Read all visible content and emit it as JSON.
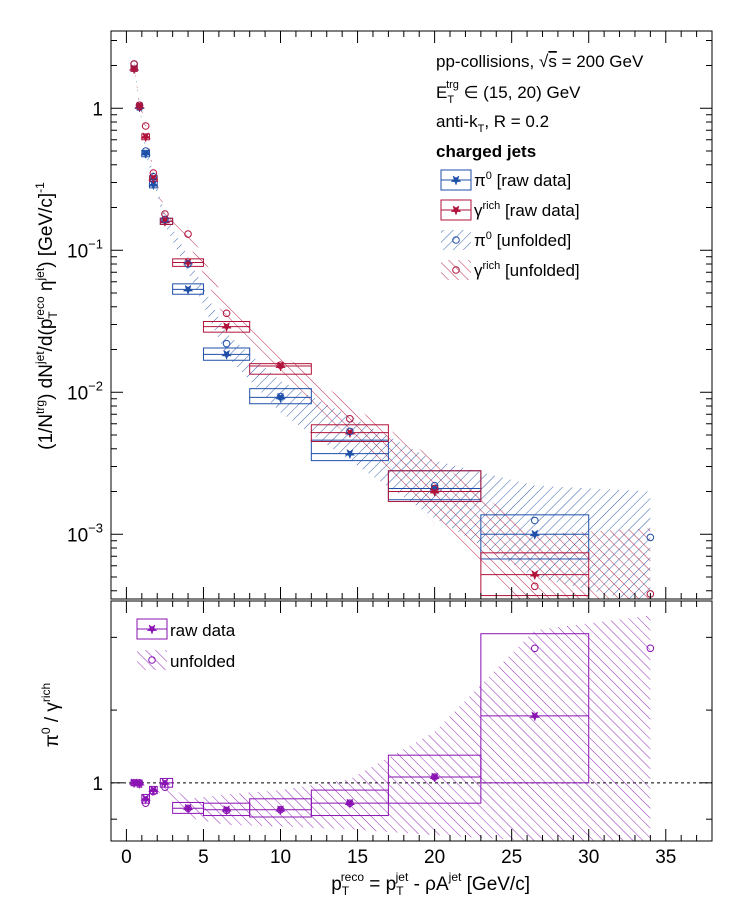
{
  "chart_data": [
    {
      "type": "scatter",
      "panel": "top",
      "yscale": "log",
      "ylim": [
        0.00035,
        3.5
      ],
      "xlim": [
        -1,
        38
      ],
      "y_ticks": [
        {
          "v": 1,
          "base": "1",
          "exp": ""
        },
        {
          "v": 0.1,
          "base": "10",
          "exp": "−1"
        },
        {
          "v": 0.01,
          "base": "10",
          "exp": "−2"
        },
        {
          "v": 0.001,
          "base": "10",
          "exp": "−3"
        }
      ],
      "ylabel": {
        "parts": [
          "(1/N",
          "trg",
          ") dN",
          "jet",
          "/d(p",
          "T",
          "reco",
          " η",
          "jet",
          ") [GeV/c]",
          "-1"
        ]
      },
      "annotations": {
        "line1_pre": "pp-collisions, ",
        "line1_sqrt": "s",
        "line1_post": " = 200 GeV",
        "line2_E": "E",
        "line2_sub": "T",
        "line2_sup": "trg",
        "line2_post": " ∈ (15, 20) GeV",
        "line3_pre": "anti-k",
        "line3_sub": "T",
        "line3_post": ", R = 0.2",
        "line4": "charged jets"
      },
      "legend": [
        {
          "sym": "π",
          "sup": "0",
          "text": " [raw data]",
          "color": "#1f4fa8",
          "kind": "raw"
        },
        {
          "sym": "γ",
          "sup": "rich",
          "text": " [raw data]",
          "color": "#b0123a",
          "kind": "raw"
        },
        {
          "sym": "π",
          "sup": "0",
          "text": " [unfolded]",
          "color": "#1f4fa8",
          "kind": "unf"
        },
        {
          "sym": "γ",
          "sup": "rich",
          "text": " [unfolded]",
          "color": "#b0123a",
          "kind": "unf"
        }
      ],
      "series": [
        {
          "name": "π0 [raw data]",
          "color": "#1f4fa8",
          "marker": "star",
          "x": [
            0.5,
            0.85,
            1.25,
            1.75,
            2.5,
            4.0,
            6.5,
            10.0,
            14.5,
            20.0,
            26.5
          ],
          "y": [
            1.9,
            1.02,
            0.48,
            0.29,
            0.16,
            0.053,
            0.0185,
            0.0092,
            0.0037,
            0.0021,
            0.001
          ],
          "box_xlo": [
            0.3,
            0.7,
            1.0,
            1.5,
            2.2,
            3.0,
            5.0,
            8.0,
            12.0,
            17.0,
            23.0
          ],
          "box_xhi": [
            0.7,
            1.0,
            1.5,
            2.0,
            3.0,
            5.0,
            8.0,
            12.0,
            17.0,
            23.0,
            30.0
          ],
          "box_ylo": [
            1.82,
            0.97,
            0.455,
            0.275,
            0.152,
            0.049,
            0.0168,
            0.0083,
            0.0033,
            0.00175,
            0.00067
          ],
          "box_yhi": [
            1.98,
            1.07,
            0.505,
            0.305,
            0.168,
            0.058,
            0.0205,
            0.0106,
            0.0046,
            0.0028,
            0.00137
          ]
        },
        {
          "name": "γrich [raw data]",
          "color": "#b0123a",
          "marker": "star",
          "x": [
            0.5,
            0.85,
            1.25,
            1.75,
            2.5,
            4.0,
            6.5,
            10.0,
            14.5,
            20.0,
            26.5
          ],
          "y": [
            1.9,
            1.03,
            0.63,
            0.32,
            0.16,
            0.082,
            0.029,
            0.0153,
            0.0052,
            0.002,
            0.00052
          ],
          "box_xlo": [
            0.3,
            0.7,
            1.0,
            1.5,
            2.2,
            3.0,
            5.0,
            8.0,
            12.0,
            17.0,
            23.0
          ],
          "box_xhi": [
            0.7,
            1.0,
            1.5,
            2.0,
            3.0,
            5.0,
            8.0,
            12.0,
            17.0,
            23.0,
            30.0
          ],
          "box_ylo": [
            1.82,
            0.98,
            0.6,
            0.305,
            0.152,
            0.077,
            0.0265,
            0.0134,
            0.0045,
            0.0017,
            0.00037
          ],
          "box_yhi": [
            1.98,
            1.08,
            0.66,
            0.335,
            0.168,
            0.087,
            0.0315,
            0.0159,
            0.0059,
            0.0028,
            0.00074
          ]
        },
        {
          "name": "π0 [unfolded]",
          "color": "#1f4fa8",
          "marker": "circle",
          "x": [
            0.5,
            0.85,
            1.25,
            1.75,
            2.5,
            4.0,
            6.5,
            10.0,
            14.5,
            20.0,
            26.5,
            34.0
          ],
          "y": [
            2.05,
            1.05,
            0.5,
            0.33,
            0.165,
            0.08,
            0.022,
            0.0093,
            0.0053,
            0.0022,
            0.00125,
            0.00095
          ],
          "band_lo": [
            1.95,
            1.0,
            0.47,
            0.31,
            0.15,
            0.07,
            0.018,
            0.0072,
            0.0033,
            0.0013,
            0.0005,
            0.00032
          ],
          "band_hi": [
            2.15,
            1.1,
            0.53,
            0.35,
            0.18,
            0.09,
            0.026,
            0.012,
            0.0068,
            0.0033,
            0.0022,
            0.002
          ]
        },
        {
          "name": "γrich [unfolded]",
          "color": "#b0123a",
          "marker": "circle",
          "x": [
            0.5,
            0.85,
            1.25,
            1.75,
            2.5,
            4.0,
            6.5,
            10.0,
            14.5,
            20.0,
            26.5,
            34.0
          ],
          "y": [
            2.05,
            1.05,
            0.75,
            0.35,
            0.18,
            0.13,
            0.036,
            0.0155,
            0.0065,
            0.0021,
            0.00043,
            0.00038
          ],
          "band_lo": [
            1.95,
            1.0,
            0.7,
            0.33,
            0.165,
            0.115,
            0.031,
            0.013,
            0.0048,
            0.0012,
            0.00028,
            0.0002
          ],
          "band_hi": [
            2.15,
            1.1,
            0.8,
            0.37,
            0.195,
            0.145,
            0.042,
            0.019,
            0.0082,
            0.0034,
            0.001,
            0.0011
          ]
        }
      ]
    },
    {
      "type": "scatter",
      "panel": "bottom",
      "ylim": [
        0.2,
        3.5
      ],
      "xlim": [
        -1,
        38
      ],
      "x_ticks": [
        0,
        5,
        10,
        15,
        20,
        25,
        30,
        35
      ],
      "y_ticks": [
        1
      ],
      "ylabel": {
        "a": "π",
        "a_sup": "0",
        "mid": " / γ",
        "b_sup": "rich"
      },
      "xlabel": {
        "p": "p",
        "sub": "T",
        "sup": "reco",
        "eq": " = p",
        "sub2": "T",
        "sup2": "jet",
        "mid": " - ρA",
        "sup3": "jet",
        "unit": " [GeV/c]"
      },
      "reference_line": 1,
      "legend": [
        {
          "text": "raw data",
          "kind": "raw",
          "color": "#8a12b3"
        },
        {
          "text": "unfolded",
          "kind": "unf",
          "color": "#8a12b3"
        }
      ],
      "series": [
        {
          "name": "raw data",
          "color": "#8a12b3",
          "marker": "star",
          "x": [
            0.5,
            0.85,
            1.25,
            1.75,
            2.5,
            4.0,
            6.5,
            10.0,
            14.5,
            20.0,
            26.5
          ],
          "y": [
            1.0,
            0.99,
            0.78,
            0.9,
            1.0,
            0.65,
            0.63,
            0.63,
            0.72,
            1.08,
            1.92
          ],
          "box_xlo": [
            0.3,
            0.7,
            1.0,
            1.5,
            2.2,
            3.0,
            5.0,
            8.0,
            12.0,
            17.0,
            23.0
          ],
          "box_xhi": [
            0.7,
            1.0,
            1.5,
            2.0,
            3.0,
            5.0,
            8.0,
            12.0,
            17.0,
            23.0,
            30.0
          ],
          "box_ylo": [
            0.96,
            0.94,
            0.72,
            0.85,
            0.94,
            0.58,
            0.55,
            0.53,
            0.55,
            0.72,
            1.0
          ],
          "box_yhi": [
            1.04,
            1.03,
            0.84,
            0.95,
            1.06,
            0.73,
            0.72,
            0.78,
            0.9,
            1.38,
            3.05
          ]
        },
        {
          "name": "unfolded",
          "color": "#8a12b3",
          "marker": "circle",
          "x": [
            0.5,
            0.85,
            1.25,
            1.75,
            2.5,
            4.0,
            6.5,
            10.0,
            14.5,
            20.0,
            26.5,
            34.0
          ],
          "y": [
            1.0,
            1.0,
            0.72,
            0.88,
            0.94,
            0.65,
            0.62,
            0.63,
            0.72,
            1.08,
            2.85,
            2.85
          ],
          "band_lo": [
            0.96,
            0.95,
            0.68,
            0.84,
            0.88,
            0.52,
            0.42,
            0.4,
            0.36,
            0.28,
            0.2,
            0.2
          ],
          "band_hi": [
            1.04,
            1.05,
            0.76,
            0.92,
            1.0,
            0.78,
            0.84,
            0.9,
            1.05,
            1.7,
            3.1,
            3.3
          ]
        }
      ]
    }
  ]
}
